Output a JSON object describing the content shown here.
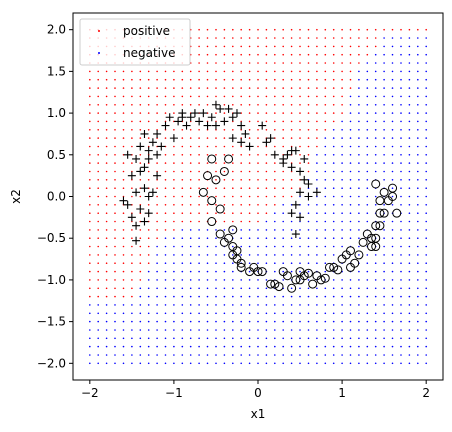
{
  "chart_data": {
    "type": "scatter",
    "title": "",
    "xlabel": "x1",
    "ylabel": "x2",
    "xlim": [
      -2.2,
      2.2
    ],
    "ylim": [
      -2.2,
      2.2
    ],
    "xticks": [
      -2,
      -1,
      0,
      1,
      2
    ],
    "xtick_labels": [
      "−2",
      "−1",
      "0",
      "1",
      "2"
    ],
    "yticks": [
      -2.0,
      -1.5,
      -1.0,
      -0.5,
      0.0,
      0.5,
      1.0,
      1.5,
      2.0
    ],
    "ytick_labels": [
      "−2.0",
      "−1.5",
      "−1.0",
      "−0.5",
      "0.0",
      "0.5",
      "1.0",
      "1.5",
      "2.0"
    ],
    "grid": false,
    "legend_position": "top-left",
    "legend": [
      {
        "label": "positive",
        "color": "#ff0000",
        "marker": "dot"
      },
      {
        "label": "negative",
        "color": "#0000ff",
        "marker": "dot"
      }
    ],
    "decision_grid": {
      "x_range": [
        -2.0,
        2.0
      ],
      "y_range": [
        -2.0,
        2.0
      ],
      "step": 0.1,
      "positive_color": "#ff0000",
      "negative_color": "#0000ff",
      "boundary": [
        [
          -2.0,
          -1.25
        ],
        [
          -1.5,
          -1.25
        ],
        [
          -1.3,
          -0.9
        ],
        [
          -1.2,
          -0.5
        ],
        [
          -0.8,
          -0.3
        ],
        [
          -0.4,
          -0.3
        ],
        [
          0.0,
          -0.3
        ],
        [
          0.2,
          -0.15
        ],
        [
          0.45,
          0.0
        ],
        [
          0.6,
          0.25
        ],
        [
          0.8,
          0.75
        ],
        [
          1.0,
          1.0
        ],
        [
          1.2,
          1.5
        ],
        [
          1.55,
          2.0
        ],
        [
          2.0,
          2.0
        ]
      ]
    },
    "series": [
      {
        "name": "positive",
        "marker": "plus",
        "color": "#000000",
        "points": [
          [
            -1.6,
            -0.05
          ],
          [
            -1.55,
            -0.1
          ],
          [
            -1.5,
            -0.25
          ],
          [
            -1.45,
            -0.35
          ],
          [
            -1.4,
            -0.15
          ],
          [
            -1.35,
            -0.3
          ],
          [
            -1.45,
            0.05
          ],
          [
            -1.5,
            0.25
          ],
          [
            -1.4,
            0.3
          ],
          [
            -1.35,
            0.1
          ],
          [
            -1.3,
            0.0
          ],
          [
            -1.3,
            -0.2
          ],
          [
            -1.45,
            0.45
          ],
          [
            -1.55,
            0.5
          ],
          [
            -1.4,
            0.6
          ],
          [
            -1.3,
            0.45
          ],
          [
            -1.25,
            0.65
          ],
          [
            -1.35,
            0.75
          ],
          [
            -1.2,
            0.5
          ],
          [
            -1.15,
            0.6
          ],
          [
            -1.2,
            0.25
          ],
          [
            -1.25,
            0.05
          ],
          [
            -1.2,
            0.75
          ],
          [
            -1.3,
            0.55
          ],
          [
            -1.45,
            -0.53
          ],
          [
            -1.1,
            0.85
          ],
          [
            -1.0,
            0.7
          ],
          [
            -0.95,
            0.9
          ],
          [
            -0.9,
            1.0
          ],
          [
            -0.8,
            0.95
          ],
          [
            -0.7,
            0.9
          ],
          [
            -0.65,
            1.0
          ],
          [
            -0.55,
            0.95
          ],
          [
            -0.5,
            1.1
          ],
          [
            -0.45,
            1.05
          ],
          [
            -0.4,
            0.9
          ],
          [
            -0.35,
            1.05
          ],
          [
            -0.3,
            0.95
          ],
          [
            -0.25,
            1.0
          ],
          [
            -0.5,
            0.85
          ],
          [
            -0.6,
            0.85
          ],
          [
            -0.85,
            0.85
          ],
          [
            -0.2,
            0.85
          ],
          [
            -0.3,
            0.7
          ],
          [
            -0.2,
            0.65
          ],
          [
            -0.1,
            0.6
          ],
          [
            0.05,
            0.85
          ],
          [
            0.1,
            0.65
          ],
          [
            0.15,
            0.7
          ],
          [
            0.2,
            0.5
          ],
          [
            0.3,
            0.45
          ],
          [
            0.35,
            0.5
          ],
          [
            0.45,
            0.55
          ],
          [
            0.4,
            0.35
          ],
          [
            0.5,
            0.3
          ],
          [
            0.55,
            0.2
          ],
          [
            0.5,
            0.05
          ],
          [
            0.6,
            0.0
          ],
          [
            0.45,
            -0.1
          ],
          [
            0.4,
            -0.2
          ],
          [
            0.5,
            -0.25
          ],
          [
            0.6,
            0.15
          ],
          [
            0.55,
            0.45
          ],
          [
            0.4,
            0.55
          ],
          [
            0.7,
            0.05
          ],
          [
            0.45,
            -0.45
          ],
          [
            0.3,
            0.4
          ],
          [
            -0.15,
            0.75
          ],
          [
            -0.9,
            0.95
          ],
          [
            -0.75,
            1.0
          ],
          [
            -1.05,
            0.95
          ],
          [
            -1.35,
            0.35
          ]
        ]
      },
      {
        "name": "negative",
        "marker": "circle",
        "color": "#000000",
        "points": [
          [
            -0.55,
            0.45
          ],
          [
            -0.6,
            0.25
          ],
          [
            -0.65,
            0.05
          ],
          [
            -0.55,
            -0.05
          ],
          [
            -0.5,
            0.2
          ],
          [
            -0.4,
            0.3
          ],
          [
            -0.35,
            0.45
          ],
          [
            -0.45,
            -0.15
          ],
          [
            -0.55,
            -0.3
          ],
          [
            -0.45,
            -0.45
          ],
          [
            -0.4,
            -0.55
          ],
          [
            -0.35,
            -0.5
          ],
          [
            -0.3,
            -0.6
          ],
          [
            -0.3,
            -0.7
          ],
          [
            -0.25,
            -0.65
          ],
          [
            -0.2,
            -0.8
          ],
          [
            -0.2,
            -0.85
          ],
          [
            -0.1,
            -0.9
          ],
          [
            -0.05,
            -0.85
          ],
          [
            0.05,
            -0.9
          ],
          [
            0.15,
            -1.05
          ],
          [
            0.2,
            -1.05
          ],
          [
            0.25,
            -1.08
          ],
          [
            0.35,
            -0.95
          ],
          [
            0.4,
            -1.1
          ],
          [
            0.45,
            -1.0
          ],
          [
            0.5,
            -1.0
          ],
          [
            0.5,
            -0.9
          ],
          [
            0.6,
            -0.92
          ],
          [
            0.65,
            -1.05
          ],
          [
            0.7,
            -0.95
          ],
          [
            0.75,
            -1.0
          ],
          [
            0.8,
            -0.98
          ],
          [
            0.85,
            -0.85
          ],
          [
            0.9,
            -0.85
          ],
          [
            0.95,
            -0.88
          ],
          [
            1.0,
            -0.75
          ],
          [
            1.05,
            -0.7
          ],
          [
            1.1,
            -0.85
          ],
          [
            1.15,
            -0.8
          ],
          [
            1.2,
            -0.7
          ],
          [
            1.25,
            -0.55
          ],
          [
            1.3,
            -0.45
          ],
          [
            1.35,
            -0.6
          ],
          [
            1.4,
            -0.6
          ],
          [
            1.4,
            -0.5
          ],
          [
            1.4,
            -0.35
          ],
          [
            1.45,
            -0.35
          ],
          [
            1.45,
            -0.2
          ],
          [
            1.5,
            -0.2
          ],
          [
            1.55,
            -0.05
          ],
          [
            1.6,
            0.0
          ],
          [
            1.65,
            -0.2
          ],
          [
            1.6,
            0.1
          ],
          [
            1.5,
            0.05
          ],
          [
            1.4,
            0.15
          ],
          [
            1.45,
            -0.05
          ],
          [
            -0.3,
            -0.4
          ],
          [
            -0.25,
            -0.75
          ],
          [
            0.0,
            -0.9
          ],
          [
            0.3,
            -0.9
          ],
          [
            0.55,
            -0.95
          ],
          [
            1.1,
            -0.65
          ],
          [
            1.35,
            -0.5
          ]
        ]
      }
    ]
  }
}
